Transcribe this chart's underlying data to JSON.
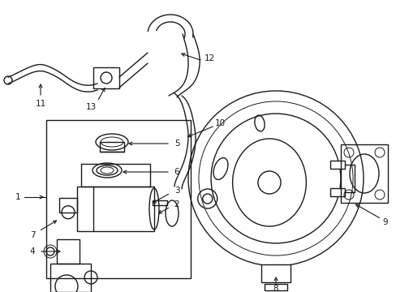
{
  "bg_color": "#ffffff",
  "line_color": "#1a1a1a",
  "lw": 1.0,
  "tlw": 0.7
}
